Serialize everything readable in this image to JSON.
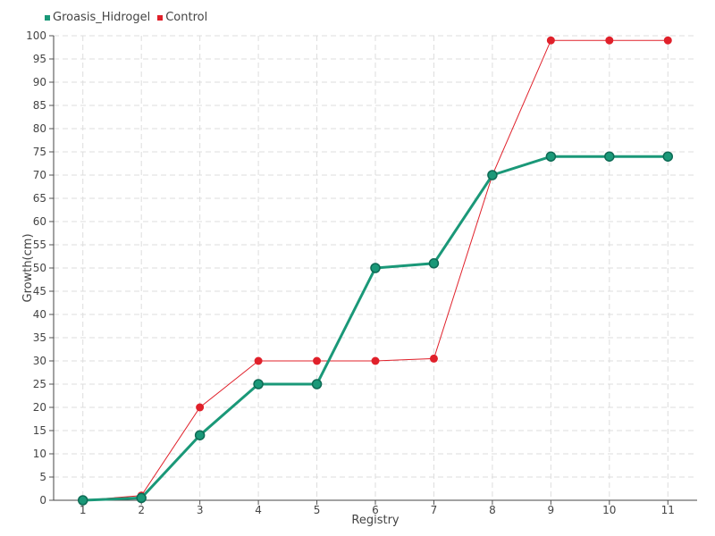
{
  "chart_data": {
    "type": "line",
    "xlabel": "Registry",
    "ylabel": "Growth(cm)",
    "x": [
      1,
      2,
      3,
      4,
      5,
      6,
      7,
      8,
      9,
      10,
      11
    ],
    "xlim": [
      0.5,
      11.5
    ],
    "ylim": [
      0,
      100
    ],
    "ytick_step": 5,
    "grid": true,
    "legend_position": "top-left",
    "series": [
      {
        "name": "Groasis_Hidrogel",
        "color": "#1a9878",
        "values": [
          0,
          0.5,
          14,
          25,
          25,
          50,
          51,
          70,
          74,
          74,
          74
        ]
      },
      {
        "name": "Control",
        "color": "#e0202a",
        "values": [
          0,
          1,
          20,
          30,
          30,
          30,
          30.5,
          70,
          99,
          99,
          99
        ]
      }
    ]
  }
}
